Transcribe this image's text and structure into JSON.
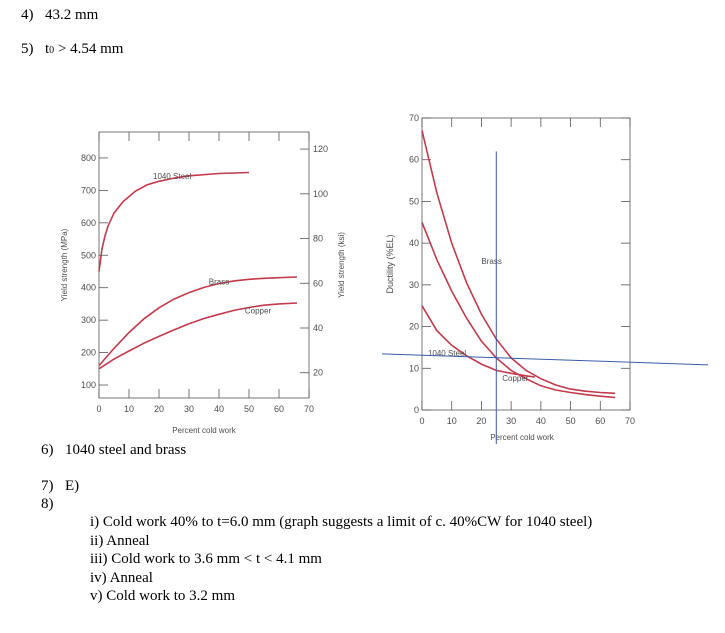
{
  "answers": {
    "a4": {
      "num": "4)",
      "text": "43.2 mm"
    },
    "a5": {
      "num": "5)",
      "text_pre": "t",
      "text_sub": "0",
      "text_post": " > 4.54 mm"
    },
    "a6": {
      "num": "6)",
      "text": "1040 steel and brass"
    },
    "a7": {
      "num": "7)",
      "text": "E)"
    },
    "a8": {
      "num": "8)"
    }
  },
  "steps": [
    "i)  Cold work 40% to t=6.0 mm (graph suggests a limit of c. 40%CW for 1040 steel)",
    "ii)  Anneal",
    "iii)  Cold work to 3.6 mm < t < 4.1 mm",
    "iv)  Anneal",
    "v)  Cold work to 3.2 mm"
  ],
  "colors": {
    "curve": "#c23a4c",
    "guide": "#3a5ca6",
    "axis": "#555555"
  },
  "chart_data": [
    {
      "type": "line",
      "title": "",
      "xlabel": "Percent cold work",
      "ylabel": "Yield strength (MPa)",
      "ylabel_right": "Yield strength (ksi)",
      "xlim": [
        0,
        70
      ],
      "ylim": [
        60,
        880
      ],
      "x_ticks": [
        0,
        10,
        20,
        30,
        40,
        50,
        60,
        70
      ],
      "y_ticks": [
        100,
        200,
        300,
        400,
        500,
        600,
        700,
        800
      ],
      "y2_ticks": [
        20,
        40,
        60,
        80,
        100,
        120
      ],
      "series": [
        {
          "name": "1040 Steel",
          "x": [
            0,
            1,
            2,
            3,
            5,
            8,
            12,
            16,
            20,
            25,
            30,
            40,
            50
          ],
          "y": [
            450,
            520,
            560,
            590,
            630,
            665,
            697,
            717,
            728,
            738,
            745,
            752,
            755
          ]
        },
        {
          "name": "Brass",
          "x": [
            0,
            5,
            10,
            15,
            20,
            25,
            30,
            35,
            40,
            45,
            50,
            55,
            60,
            66
          ],
          "y": [
            160,
            213,
            262,
            304,
            338,
            365,
            385,
            401,
            413,
            421,
            426,
            429,
            431,
            433
          ]
        },
        {
          "name": "Copper",
          "x": [
            0,
            5,
            10,
            15,
            20,
            25,
            30,
            35,
            40,
            45,
            50,
            55,
            60,
            66
          ],
          "y": [
            150,
            180,
            205,
            229,
            250,
            270,
            289,
            305,
            318,
            330,
            339,
            346,
            350,
            353
          ]
        }
      ]
    },
    {
      "type": "line",
      "title": "",
      "xlabel": "Percent cold work",
      "ylabel": "Ductility (%EL)",
      "xlim": [
        0,
        70
      ],
      "ylim": [
        0,
        70
      ],
      "x_ticks": [
        0,
        10,
        20,
        30,
        40,
        50,
        60,
        70
      ],
      "y_ticks": [
        0,
        10,
        20,
        30,
        40,
        50,
        60,
        70
      ],
      "series": [
        {
          "name": "Brass",
          "x": [
            0,
            5,
            10,
            15,
            20,
            25,
            30,
            35,
            40,
            45,
            50,
            55,
            60,
            65
          ],
          "y": [
            67,
            52,
            40,
            30.5,
            23,
            17,
            12.5,
            9.5,
            7.5,
            6,
            5,
            4.5,
            4.2,
            4
          ]
        },
        {
          "name": "1040 Steel",
          "x": [
            0,
            5,
            10,
            15,
            20,
            25,
            30,
            35,
            38
          ],
          "y": [
            25,
            19,
            15.5,
            13,
            11,
            9.5,
            8.8,
            8.2,
            7.9
          ]
        },
        {
          "name": "Copper",
          "x": [
            0,
            5,
            10,
            15,
            20,
            25,
            30,
            35,
            40,
            45,
            50,
            55,
            60,
            65
          ],
          "y": [
            45,
            36,
            28.5,
            22,
            16.5,
            12.5,
            9.5,
            7.5,
            5.8,
            4.8,
            4.2,
            3.7,
            3.3,
            3
          ]
        }
      ],
      "guides": {
        "x": 25,
        "y": 12.5
      }
    }
  ]
}
